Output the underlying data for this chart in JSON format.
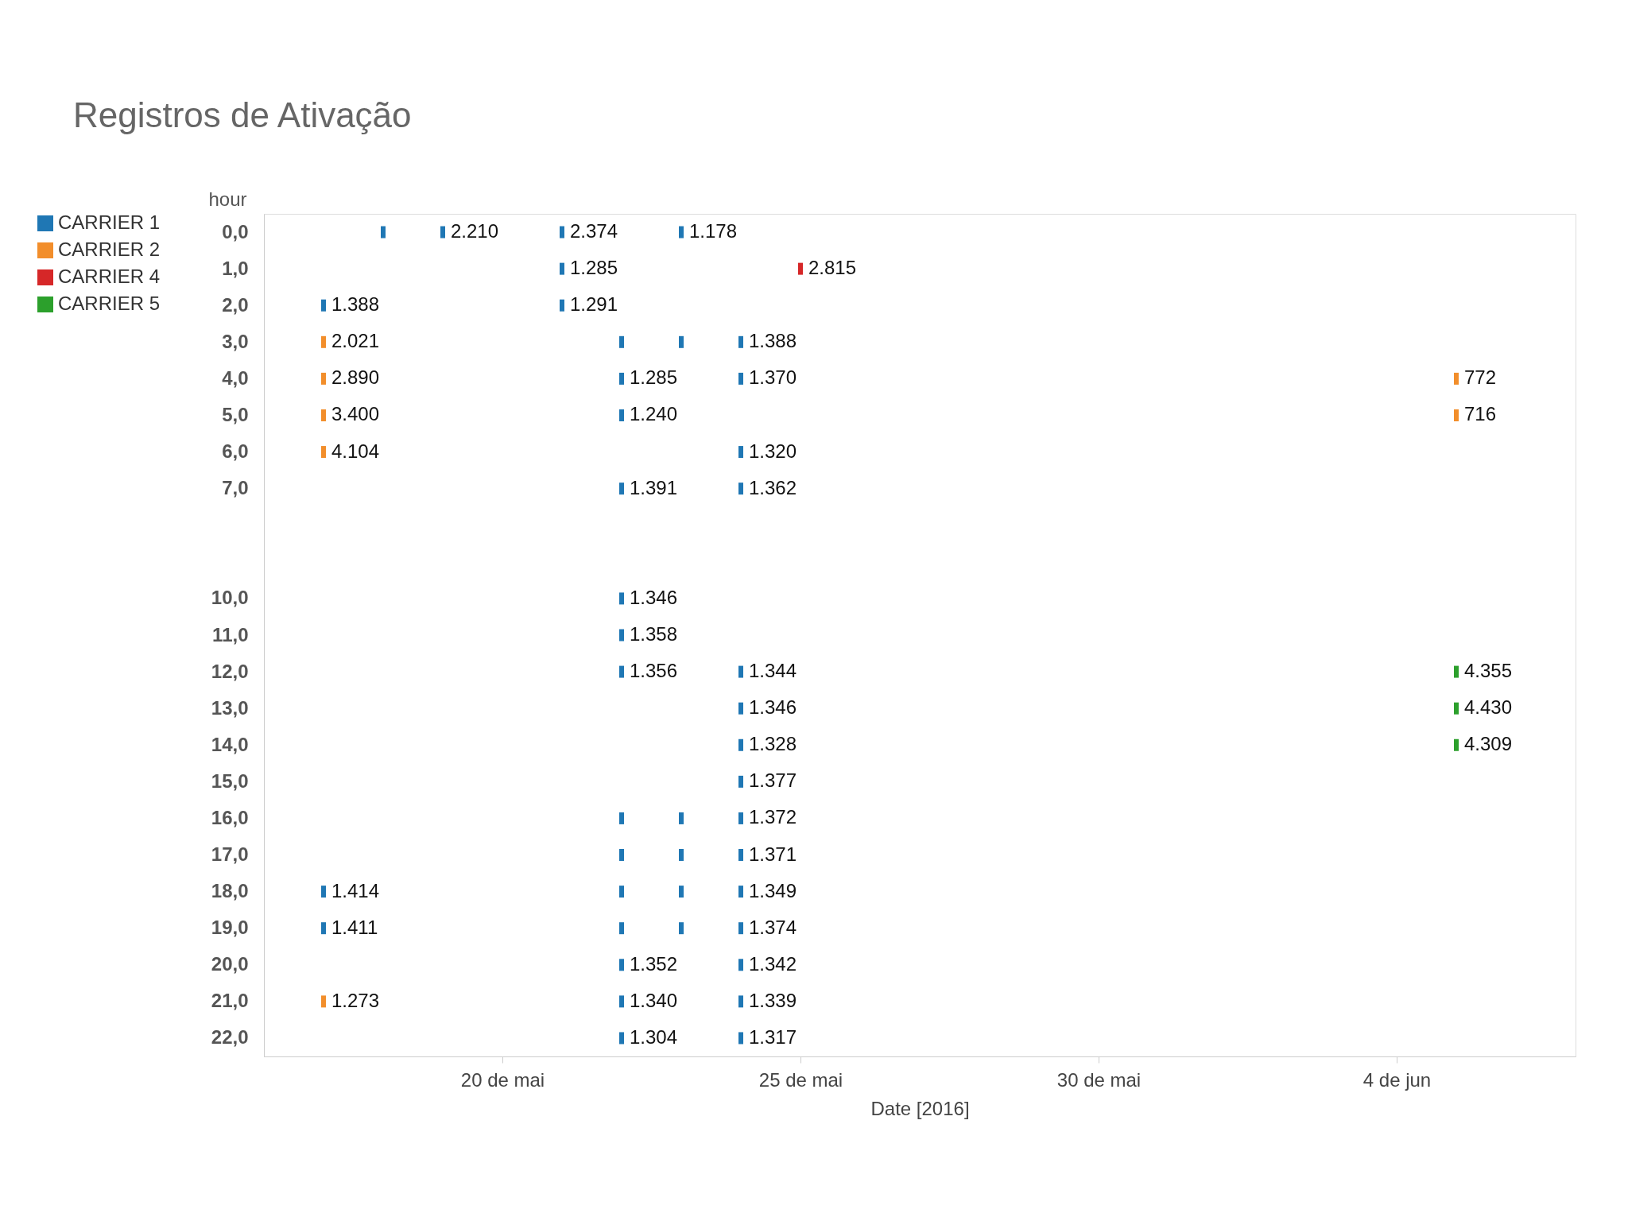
{
  "chart_data": {
    "type": "scatter",
    "title": "Registros de Ativação",
    "xlabel": "Date [2016]",
    "ylabel": "hour",
    "xlim": [
      "2016-05-16",
      "2016-06-07"
    ],
    "xticks": [
      {
        "value": "2016-05-20",
        "label": "20 de mai"
      },
      {
        "value": "2016-05-25",
        "label": "25 de mai"
      },
      {
        "value": "2016-05-30",
        "label": "30 de mai"
      },
      {
        "value": "2016-06-04",
        "label": "4 de jun"
      }
    ],
    "ylim": [
      22.5,
      -0.5
    ],
    "yticks": [
      {
        "value": 0,
        "label": "0,0"
      },
      {
        "value": 1,
        "label": "1,0"
      },
      {
        "value": 2,
        "label": "2,0"
      },
      {
        "value": 3,
        "label": "3,0"
      },
      {
        "value": 4,
        "label": "4,0"
      },
      {
        "value": 5,
        "label": "5,0"
      },
      {
        "value": 6,
        "label": "6,0"
      },
      {
        "value": 7,
        "label": "7,0"
      },
      {
        "value": 10,
        "label": "10,0"
      },
      {
        "value": 11,
        "label": "11,0"
      },
      {
        "value": 12,
        "label": "12,0"
      },
      {
        "value": 13,
        "label": "13,0"
      },
      {
        "value": 14,
        "label": "14,0"
      },
      {
        "value": 15,
        "label": "15,0"
      },
      {
        "value": 16,
        "label": "16,0"
      },
      {
        "value": 17,
        "label": "17,0"
      },
      {
        "value": 18,
        "label": "18,0"
      },
      {
        "value": 19,
        "label": "19,0"
      },
      {
        "value": 20,
        "label": "20,0"
      },
      {
        "value": 21,
        "label": "21,0"
      },
      {
        "value": 22,
        "label": "22,0"
      }
    ],
    "legend": "left",
    "grid": false,
    "series": [
      {
        "name": "CARRIER 1",
        "color": "#1f77b4",
        "x": [
          "2016-05-18",
          "2016-05-19",
          "2016-05-21",
          "2016-05-23",
          "2016-05-21",
          "2016-05-17",
          "2016-05-21",
          "2016-05-22",
          "2016-05-23",
          "2016-05-24",
          "2016-05-22",
          "2016-05-24",
          "2016-05-22",
          "2016-05-24",
          "2016-05-22",
          "2016-05-24",
          "2016-05-22",
          "2016-05-22",
          "2016-05-22",
          "2016-05-24",
          "2016-05-24",
          "2016-05-24",
          "2016-05-24",
          "2016-05-22",
          "2016-05-23",
          "2016-05-24",
          "2016-05-22",
          "2016-05-23",
          "2016-05-24",
          "2016-05-17",
          "2016-05-22",
          "2016-05-23",
          "2016-05-24",
          "2016-05-17",
          "2016-05-22",
          "2016-05-23",
          "2016-05-24",
          "2016-05-22",
          "2016-05-24",
          "2016-05-22",
          "2016-05-24",
          "2016-05-22",
          "2016-05-24"
        ],
        "values": [
          0,
          0,
          0,
          0,
          1,
          2,
          2,
          3,
          3,
          3,
          4,
          4,
          5,
          6,
          7,
          7,
          10,
          11,
          12,
          12,
          13,
          14,
          15,
          16,
          16,
          16,
          17,
          17,
          17,
          18,
          18,
          18,
          18,
          19,
          19,
          19,
          19,
          20,
          20,
          21,
          21,
          22,
          22
        ]
      },
      {
        "name": "CARRIER 2",
        "color": "#f28e2b",
        "x": [
          "2016-05-17",
          "2016-05-17",
          "2016-05-17",
          "2016-05-17",
          "2016-05-17",
          "2016-06-05",
          "2016-06-05"
        ],
        "values": [
          3,
          4,
          5,
          6,
          21,
          4,
          5
        ]
      },
      {
        "name": "CARRIER 4",
        "color": "#d62728",
        "x": [
          "2016-05-25"
        ],
        "values": [
          1
        ]
      },
      {
        "name": "CARRIER 5",
        "color": "#2ca02c",
        "x": [
          "2016-06-05",
          "2016-06-05",
          "2016-06-05"
        ],
        "values": [
          12,
          13,
          14
        ]
      }
    ],
    "annotations": [
      {
        "text": "2.210",
        "x": "2016-05-19",
        "y": 0
      },
      {
        "text": "2.374",
        "x": "2016-05-21",
        "y": 0
      },
      {
        "text": "1.178",
        "x": "2016-05-23",
        "y": 0
      },
      {
        "text": "1.285",
        "x": "2016-05-21",
        "y": 1
      },
      {
        "text": "2.815",
        "x": "2016-05-25",
        "y": 1
      },
      {
        "text": "1.388",
        "x": "2016-05-17",
        "y": 2
      },
      {
        "text": "1.291",
        "x": "2016-05-21",
        "y": 2
      },
      {
        "text": "2.021",
        "x": "2016-05-17",
        "y": 3
      },
      {
        "text": "1.388",
        "x": "2016-05-24",
        "y": 3
      },
      {
        "text": "2.890",
        "x": "2016-05-17",
        "y": 4
      },
      {
        "text": "1.285",
        "x": "2016-05-22",
        "y": 4
      },
      {
        "text": "1.370",
        "x": "2016-05-24",
        "y": 4
      },
      {
        "text": "772",
        "x": "2016-06-05",
        "y": 4
      },
      {
        "text": "3.400",
        "x": "2016-05-17",
        "y": 5
      },
      {
        "text": "1.240",
        "x": "2016-05-22",
        "y": 5
      },
      {
        "text": "716",
        "x": "2016-06-05",
        "y": 5
      },
      {
        "text": "4.104",
        "x": "2016-05-17",
        "y": 6
      },
      {
        "text": "1.320",
        "x": "2016-05-24",
        "y": 6
      },
      {
        "text": "1.391",
        "x": "2016-05-22",
        "y": 7
      },
      {
        "text": "1.362",
        "x": "2016-05-24",
        "y": 7
      },
      {
        "text": "1.346",
        "x": "2016-05-22",
        "y": 10
      },
      {
        "text": "1.358",
        "x": "2016-05-22",
        "y": 11
      },
      {
        "text": "1.356",
        "x": "2016-05-22",
        "y": 12
      },
      {
        "text": "1.344",
        "x": "2016-05-24",
        "y": 12
      },
      {
        "text": "4.355",
        "x": "2016-06-05",
        "y": 12
      },
      {
        "text": "1.346",
        "x": "2016-05-24",
        "y": 13
      },
      {
        "text": "4.430",
        "x": "2016-06-05",
        "y": 13
      },
      {
        "text": "1.328",
        "x": "2016-05-24",
        "y": 14
      },
      {
        "text": "4.309",
        "x": "2016-06-05",
        "y": 14
      },
      {
        "text": "1.377",
        "x": "2016-05-24",
        "y": 15
      },
      {
        "text": "1.372",
        "x": "2016-05-24",
        "y": 16
      },
      {
        "text": "1.371",
        "x": "2016-05-24",
        "y": 17
      },
      {
        "text": "1.414",
        "x": "2016-05-17",
        "y": 18
      },
      {
        "text": "1.349",
        "x": "2016-05-24",
        "y": 18
      },
      {
        "text": "1.411",
        "x": "2016-05-17",
        "y": 19
      },
      {
        "text": "1.374",
        "x": "2016-05-24",
        "y": 19
      },
      {
        "text": "1.352",
        "x": "2016-05-22",
        "y": 20
      },
      {
        "text": "1.342",
        "x": "2016-05-24",
        "y": 20
      },
      {
        "text": "1.273",
        "x": "2016-05-17",
        "y": 21
      },
      {
        "text": "1.340",
        "x": "2016-05-22",
        "y": 21
      },
      {
        "text": "1.339",
        "x": "2016-05-24",
        "y": 21
      },
      {
        "text": "1.304",
        "x": "2016-05-22",
        "y": 22
      },
      {
        "text": "1.317",
        "x": "2016-05-24",
        "y": 22
      }
    ]
  }
}
